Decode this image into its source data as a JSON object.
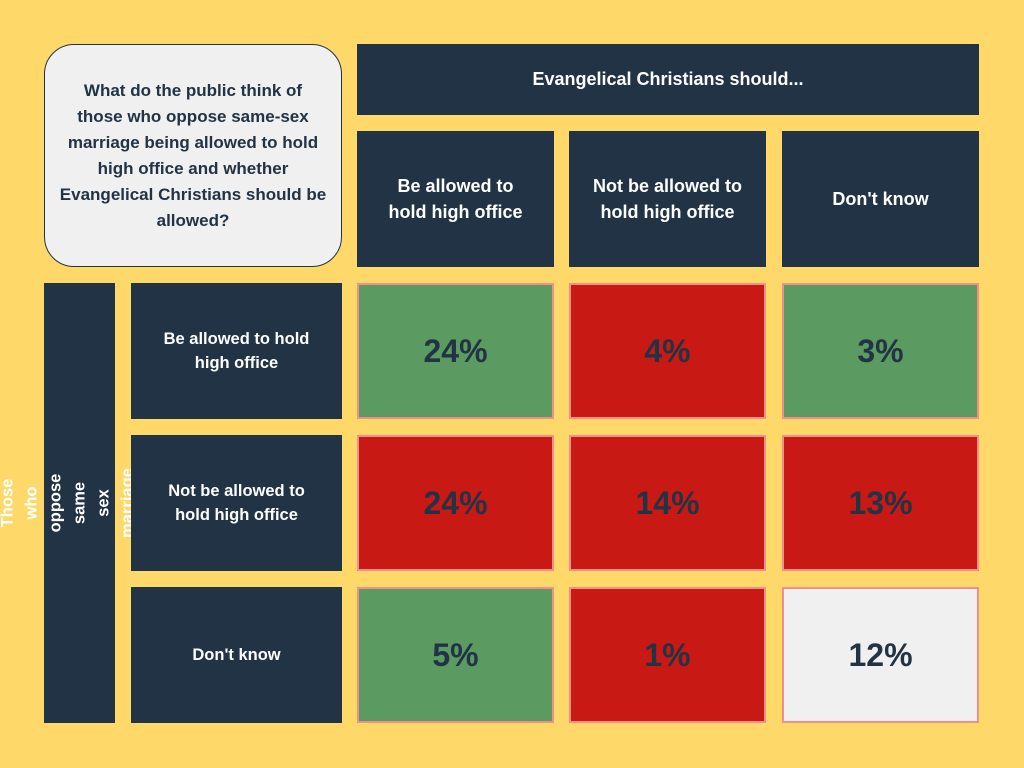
{
  "question": "What do the public think of those who oppose same-sex marriage being allowed to hold high office and whether Evangelical Christians should be allowed?",
  "colors": {
    "background": "#fed96a",
    "header": "#213345",
    "green": "#5b9a60",
    "red": "#c91915",
    "neutral": "#f0f0f0",
    "cell_border": "#f0908a"
  },
  "chart_data": {
    "type": "heatmap",
    "column_group_label": "Evangelical Christians should...",
    "row_group_label": "Those who oppose same sex marriage should...",
    "columns": [
      "Be allowed to hold high office",
      "Not be allowed to hold high office",
      "Don't know"
    ],
    "rows": [
      "Be allowed to hold high office",
      "Not be allowed to hold high office",
      "Don't know"
    ],
    "values": [
      [
        "24%",
        "4%",
        "3%"
      ],
      [
        "24%",
        "14%",
        "13%"
      ],
      [
        "5%",
        "1%",
        "12%"
      ]
    ],
    "cell_colors": [
      [
        "green",
        "red",
        "green"
      ],
      [
        "red",
        "red",
        "red"
      ],
      [
        "green",
        "red",
        "neutral"
      ]
    ]
  }
}
